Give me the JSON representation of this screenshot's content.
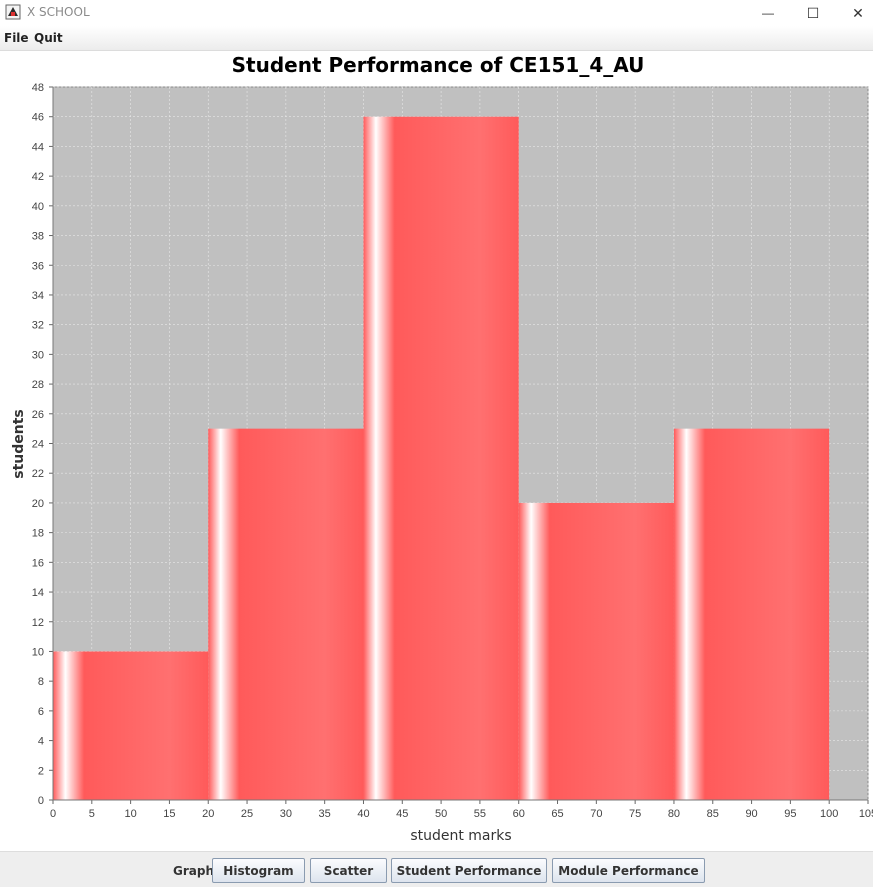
{
  "window": {
    "title": "X SCHOOL",
    "minimize_glyph": "—",
    "maximize_glyph": "☐",
    "close_glyph": "✕"
  },
  "menu": {
    "items": [
      "File",
      "Quit"
    ]
  },
  "bottom_bar": {
    "graph_label": "Graph",
    "buttons": [
      "Histogram",
      "Scatter",
      "Student Performance",
      "Module Performance"
    ]
  },
  "colors": {
    "bar": "#ff5a5a",
    "plot_bg": "#c0c0c0",
    "grid": "#e8e8e8"
  },
  "chart_data": {
    "type": "bar",
    "title": "Student Performance of CE151_4_AU",
    "xlabel": "student marks",
    "ylabel": "students",
    "bins": [
      {
        "start": 0,
        "end": 20,
        "value": 10
      },
      {
        "start": 20,
        "end": 40,
        "value": 25
      },
      {
        "start": 40,
        "end": 60,
        "value": 46
      },
      {
        "start": 60,
        "end": 80,
        "value": 20
      },
      {
        "start": 80,
        "end": 100,
        "value": 25
      }
    ],
    "xlim": [
      0,
      105
    ],
    "ylim": [
      0,
      48
    ],
    "x_ticks": [
      0,
      5,
      10,
      15,
      20,
      25,
      30,
      35,
      40,
      45,
      50,
      55,
      60,
      65,
      70,
      75,
      80,
      85,
      90,
      95,
      100,
      105
    ],
    "y_ticks": [
      0,
      2,
      4,
      6,
      8,
      10,
      12,
      14,
      16,
      18,
      20,
      22,
      24,
      26,
      28,
      30,
      32,
      34,
      36,
      38,
      40,
      42,
      44,
      46,
      48
    ],
    "grid": true,
    "legend": "none"
  }
}
